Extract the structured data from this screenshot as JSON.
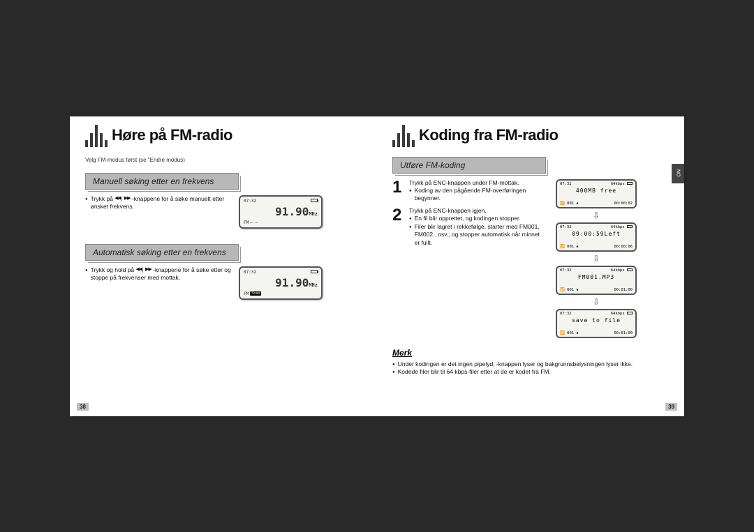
{
  "left": {
    "title": "Høre på FM-radio",
    "intro": "Velg FM-modus først (se \"Endre modus)",
    "section1": {
      "header": "Manuell søking etter en frekvens",
      "text_before": "Trykk på ",
      "text_after": " -knappene for å søke manuelt etter ønsket frekvens.",
      "lcd": {
        "time": "07:32",
        "freq": "91.90",
        "unit": "MHz",
        "mode": "FM",
        "extra": "— —"
      }
    },
    "section2": {
      "header": "Automatisk søking etter en frekvens",
      "text_before": "Trykk og hold på ",
      "text_after": " -knappene for å søke etter og stoppe på frekvenser med mottak.",
      "lcd": {
        "time": "07:32",
        "freq": "91.90",
        "unit": "MHz",
        "mode": "FM",
        "scan": "Scan"
      }
    },
    "pagenum": "38"
  },
  "right": {
    "title": "Koding fra FM-radio",
    "section_header": "Utføre FM-koding",
    "step1": {
      "main": "Trykk på ENC-knappen under FM-mottak.",
      "sub": "Koding av den pågående FM-overføringen begynner."
    },
    "step2": {
      "main": "Trykk på ENC-knappen igjen.",
      "sub1": "En fil blir opprettet, og kodingen stopper.",
      "sub2": "Filer blir lagret i rekkefølge, starter med FM001, FM002...osv., og stopper automatisk når minnet er fullt."
    },
    "enc_lcds": {
      "common_top_left": "07:32",
      "common_top_right": "64kbps",
      "common_bot_left": "001",
      "screens": [
        {
          "mid": "400MB free",
          "right": "00:00:02"
        },
        {
          "mid": "09:00:59Left",
          "right": "00:00:06"
        },
        {
          "mid": "FM001.MP3",
          "right": "00:01:00"
        },
        {
          "mid": "save to file",
          "right": "00:01:00"
        }
      ]
    },
    "merk_title": "Merk",
    "merk1": "Under kodingen er det ingen pipelyd, -knappen lyser og bakgrunnsbelysningen lyser ikke.",
    "merk2": "Kodede filer blir til 64 kbps-filer etter at de er kodet fra FM.",
    "side_tab": "NO",
    "pagenum": "39"
  }
}
